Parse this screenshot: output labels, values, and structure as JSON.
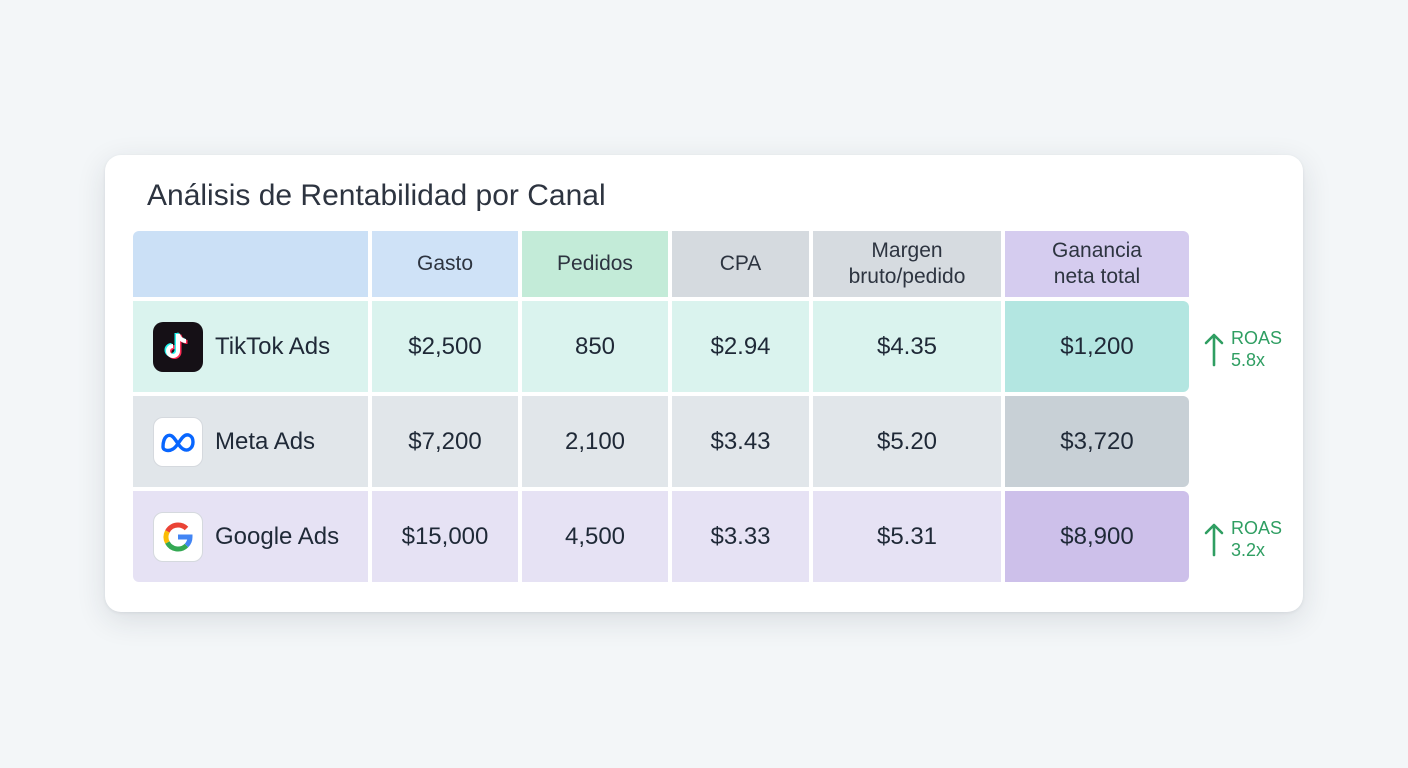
{
  "title": "Análisis de Rentabilidad por Canal",
  "headers": {
    "channel": "",
    "gasto": "Gasto",
    "pedidos": "Pedidos",
    "cpa": "CPA",
    "margen_line1": "Margen",
    "margen_line2": "bruto/pedido",
    "ganancia_line1": "Ganancia",
    "ganancia_line2": "neta total"
  },
  "rows": [
    {
      "channel": "TikTok Ads",
      "icon": "tiktok-logo-icon",
      "gasto": "$2,500",
      "pedidos": "850",
      "cpa": "$2.94",
      "margen": "$4.35",
      "ganancia": "$1,200",
      "roas_label": "ROAS",
      "roas_value": "5.8x"
    },
    {
      "channel": "Meta Ads",
      "icon": "meta-logo-icon",
      "gasto": "$7,200",
      "pedidos": "2,100",
      "cpa": "$3.43",
      "margen": "$5.20",
      "ganancia": "$3,720"
    },
    {
      "channel": "Google Ads",
      "icon": "google-logo-icon",
      "gasto": "$15,000",
      "pedidos": "4,500",
      "cpa": "$3.33",
      "margen": "$5.31",
      "ganancia": "$8,900",
      "roas_label": "ROAS",
      "roas_value": "3.2x"
    }
  ],
  "colors": {
    "header_channel": "#cbe0f6",
    "header_gasto": "#cfe2f7",
    "header_pedidos": "#c3ebd8",
    "header_cpa": "#d5dadf",
    "header_margen": "#d6dbe0",
    "header_ganancia": "#d5ccef",
    "row_tiktok": "#daf3ee",
    "row_tiktok_highlight": "#b3e6e1",
    "row_meta": "#e1e6ea",
    "row_meta_highlight": "#c8d0d6",
    "row_google": "#e6e2f4",
    "row_google_highlight": "#cdc0ea",
    "roas_green": "#2f9e62"
  }
}
